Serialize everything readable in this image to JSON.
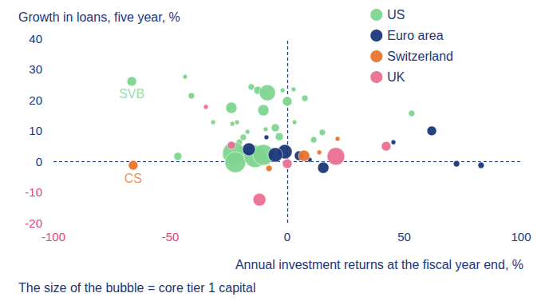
{
  "chart_data": {
    "type": "scatter",
    "y_label": "Growth in loans, five year, %",
    "x_label": "Annual investment returns at the fiscal year end, %",
    "note": "The size of the bubble = core tier 1 capital",
    "xlim": [
      -100,
      100
    ],
    "xticks": [
      -100,
      -50,
      0,
      50,
      100
    ],
    "ylim": [
      -20,
      40
    ],
    "yticks": [
      -20,
      -10,
      0,
      10,
      20,
      30,
      40
    ],
    "grid": false,
    "legend": "top right",
    "marker": "circle",
    "reference_lines": [
      {
        "x": 0,
        "line_style": "dashed"
      },
      {
        "y": 0,
        "line_style": "dashed"
      }
    ],
    "series": [
      {
        "name": "US",
        "color": "#7ed58f",
        "x": [
          -66.5,
          -43.7,
          -41,
          -46.8,
          -31.7,
          -23.9,
          -23.5,
          -21.5,
          -18.8,
          -20.5,
          -22.9,
          -22.2,
          -15.4,
          -12.6,
          -10.2,
          -8.5,
          -5.1,
          -14.3,
          -13.7,
          -9.2,
          -2,
          0,
          2.7,
          3.1,
          7.5,
          11.3,
          15,
          53.2,
          -3.4,
          -17,
          -10.2
        ],
        "y": [
          26,
          27.5,
          21.3,
          1.6,
          12.7,
          17.4,
          12.2,
          12.7,
          7.8,
          6.2,
          2.6,
          -0.3,
          24.2,
          23.1,
          16.6,
          22.3,
          10.9,
          3.6,
          1.6,
          10.4,
          23.1,
          19.5,
          23.4,
          12.7,
          20.5,
          7,
          9.4,
          15.6,
          8,
          9.6,
          2.1
        ],
        "sizes": [
          36,
          9,
          16,
          25,
          9,
          49,
          9,
          9,
          16,
          16,
          196,
          169,
          16,
          25,
          49,
          100,
          25,
          36,
          196,
          9,
          9,
          36,
          9,
          9,
          16,
          16,
          16,
          16,
          25,
          9,
          169
        ]
      },
      {
        "name": "Euro area",
        "color": "#1b3679",
        "x": [
          61.8,
          45.4,
          72.4,
          82.9,
          15.4,
          -1,
          -5.1,
          -16.4,
          5.1,
          -8.9,
          9.6
        ],
        "y": [
          9.9,
          6.2,
          -0.8,
          -1.3,
          -2.1,
          3.1,
          2.1,
          3.9,
          1.8,
          7.8,
          0.5
        ],
        "sizes": [
          36,
          9,
          16,
          16,
          49,
          81,
          81,
          64,
          36,
          9,
          9
        ]
      },
      {
        "name": "Switzerland",
        "color": "#e8762c",
        "x": [
          -65.9,
          7.2,
          -7.8,
          21.5,
          13.7
        ],
        "y": [
          -1.3,
          1.8,
          -2.3,
          7.3,
          2.9
        ],
        "sizes": [
          36,
          49,
          16,
          9,
          9
        ]
      },
      {
        "name": "UK",
        "color": "#ea6f92",
        "x": [
          20.8,
          42.3,
          -11.9,
          -34.8,
          -23.9,
          0
        ],
        "y": [
          1.6,
          4.9,
          -12.5,
          17.7,
          5.2,
          -0.8
        ],
        "sizes": [
          121,
          36,
          64,
          9,
          25,
          36
        ]
      }
    ],
    "annotations": [
      {
        "text": "SVB",
        "x": -66.5,
        "y": 26,
        "color": "#7ed58f"
      },
      {
        "text": "CS",
        "x": -65.9,
        "y": -1.3,
        "color": "#e8762c"
      }
    ]
  }
}
